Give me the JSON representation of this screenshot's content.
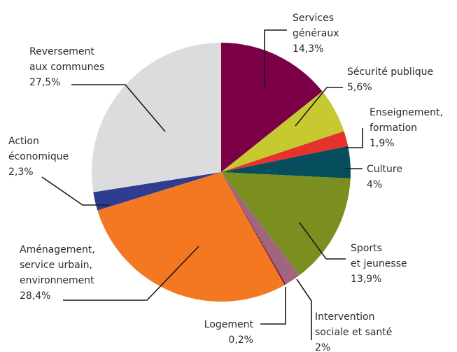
{
  "chart_data": {
    "type": "pie",
    "title": "",
    "slices": [
      {
        "label": [
          "Services",
          "généraux"
        ],
        "value_label": "14,3%",
        "value": 14.3,
        "color": "#7b0046"
      },
      {
        "label": [
          "Sécurité publique"
        ],
        "value_label": "5,6%",
        "value": 5.6,
        "color": "#c6c92f"
      },
      {
        "label": [
          "Enseignement,",
          "formation"
        ],
        "value_label": "1,9%",
        "value": 1.9,
        "color": "#e5322d"
      },
      {
        "label": [
          "Culture"
        ],
        "value_label": "4%",
        "value": 4.0,
        "color": "#064e5b"
      },
      {
        "label": [
          "Sports",
          "et jeunesse"
        ],
        "value_label": "13,9%",
        "value": 13.9,
        "color": "#7a8f1f"
      },
      {
        "label": [
          "Intervention",
          "sociale et santé"
        ],
        "value_label": "2%",
        "value": 2.0,
        "color": "#a1667f"
      },
      {
        "label": [
          "Logement"
        ],
        "value_label": "0,2%",
        "value": 0.2,
        "color": "#8c1a3a"
      },
      {
        "label": [
          "Aménagement,",
          "service urbain,",
          "environnement"
        ],
        "value_label": "28,4%",
        "value": 28.4,
        "color": "#f47721"
      },
      {
        "label": [
          "Action",
          "économique"
        ],
        "value_label": "2,3%",
        "value": 2.3,
        "color": "#2e3d8f"
      },
      {
        "label": [
          "Reversement",
          "aux communes"
        ],
        "value_label": "27,5%",
        "value": 27.5,
        "color": "#dcdcde"
      }
    ]
  }
}
